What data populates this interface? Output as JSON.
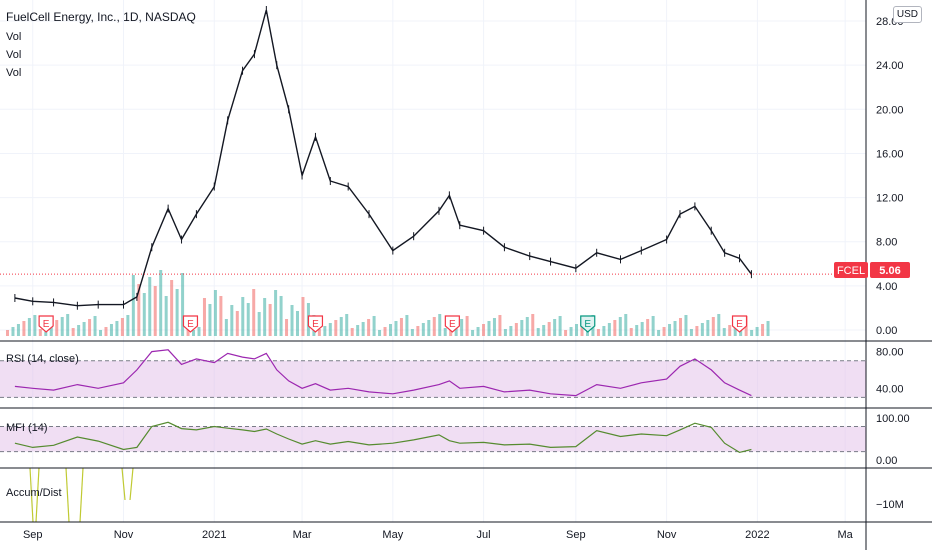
{
  "header": {
    "title": "FuelCell Energy, Inc., 1D, NASDAQ",
    "legend_lines": [
      "Vol",
      "Vol",
      "Vol"
    ],
    "currency": "USD"
  },
  "price_tag": {
    "symbol": "FCEL",
    "value": "5.06",
    "color": "#f23645"
  },
  "colors": {
    "up": "#26a69a",
    "down": "#ef5350",
    "candle": "#131722",
    "rsi": "#9c27b0",
    "rsi_band": "#e1bee7",
    "mfi": "#558b2f",
    "mfi_band": "#e1bee7",
    "accum": "#c0ca33",
    "earnings": "#f23645",
    "earnings_alt": "#089981"
  },
  "chart_data": [
    {
      "type": "line",
      "name": "price",
      "y_ticks": [
        "28.00",
        "24.00",
        "20.00",
        "16.00",
        "12.00",
        "8.00",
        "4.00",
        "0.00"
      ],
      "ylim": [
        0,
        29
      ],
      "x_ticks": [
        "Sep",
        "Nov",
        "2021",
        "Mar",
        "May",
        "Jul",
        "Sep",
        "Nov",
        "2022",
        "Ma"
      ],
      "x_dates": [
        "2020-08-20",
        "2020-09-01",
        "2020-09-15",
        "2020-10-01",
        "2020-10-15",
        "2020-11-01",
        "2020-11-10",
        "2020-11-20",
        "2020-12-01",
        "2020-12-10",
        "2020-12-20",
        "2021-01-01",
        "2021-01-10",
        "2021-01-20",
        "2021-01-28",
        "2021-02-05",
        "2021-02-12",
        "2021-02-20",
        "2021-03-01",
        "2021-03-10",
        "2021-03-20",
        "2021-04-01",
        "2021-04-15",
        "2021-05-01",
        "2021-05-15",
        "2021-06-01",
        "2021-06-08",
        "2021-06-15",
        "2021-07-01",
        "2021-07-15",
        "2021-08-01",
        "2021-08-15",
        "2021-09-01",
        "2021-09-15",
        "2021-10-01",
        "2021-10-15",
        "2021-11-01",
        "2021-11-10",
        "2021-11-20",
        "2021-12-01",
        "2021-12-10",
        "2021-12-20",
        "2021-12-28"
      ],
      "close": [
        2.9,
        2.6,
        2.5,
        2.2,
        2.3,
        2.3,
        3.0,
        7.5,
        11.0,
        8.2,
        10.5,
        13.0,
        19.0,
        23.5,
        25.0,
        29.0,
        24.0,
        20.0,
        14.0,
        17.5,
        13.5,
        13.0,
        10.5,
        7.2,
        8.5,
        10.8,
        12.2,
        9.5,
        9.0,
        7.5,
        6.7,
        6.2,
        5.6,
        7.0,
        6.4,
        7.2,
        8.2,
        10.5,
        11.2,
        9.0,
        7.0,
        6.5,
        5.06
      ],
      "current_price": 5.06,
      "earnings_markers": [
        {
          "date": "2020-09-10",
          "label": "E"
        },
        {
          "date": "2020-12-16",
          "label": "E"
        },
        {
          "date": "2021-03-10",
          "label": "E"
        },
        {
          "date": "2021-06-10",
          "label": "E"
        },
        {
          "date": "2021-09-09",
          "label": "E"
        },
        {
          "date": "2021-12-20",
          "label": "E"
        }
      ]
    },
    {
      "type": "line",
      "name": "RSI",
      "title": "RSI (14, close)",
      "y_ticks": [
        "80.00",
        "40.00"
      ],
      "band": [
        30,
        70
      ],
      "ylim": [
        25,
        85
      ],
      "values": [
        42,
        40,
        38,
        44,
        40,
        46,
        60,
        80,
        82,
        66,
        72,
        68,
        78,
        74,
        72,
        78,
        60,
        48,
        40,
        45,
        38,
        40,
        36,
        34,
        38,
        44,
        48,
        40,
        42,
        36,
        38,
        34,
        32,
        44,
        40,
        46,
        50,
        64,
        72,
        60,
        46,
        38,
        32
      ]
    },
    {
      "type": "line",
      "name": "MFI",
      "title": "MFI (14)",
      "y_ticks": [
        "100.00",
        "0.00"
      ],
      "band": [
        20,
        80
      ],
      "ylim": [
        -5,
        110
      ],
      "values": [
        40,
        30,
        35,
        55,
        45,
        25,
        30,
        80,
        90,
        75,
        72,
        80,
        76,
        72,
        68,
        74,
        62,
        50,
        38,
        46,
        38,
        44,
        36,
        40,
        48,
        60,
        46,
        40,
        42,
        36,
        38,
        30,
        32,
        70,
        56,
        62,
        58,
        72,
        88,
        78,
        40,
        18,
        25
      ]
    },
    {
      "type": "line",
      "name": "Accum/Dist",
      "title": "Accum/Dist",
      "y_ticks": [
        "−10M"
      ]
    }
  ]
}
